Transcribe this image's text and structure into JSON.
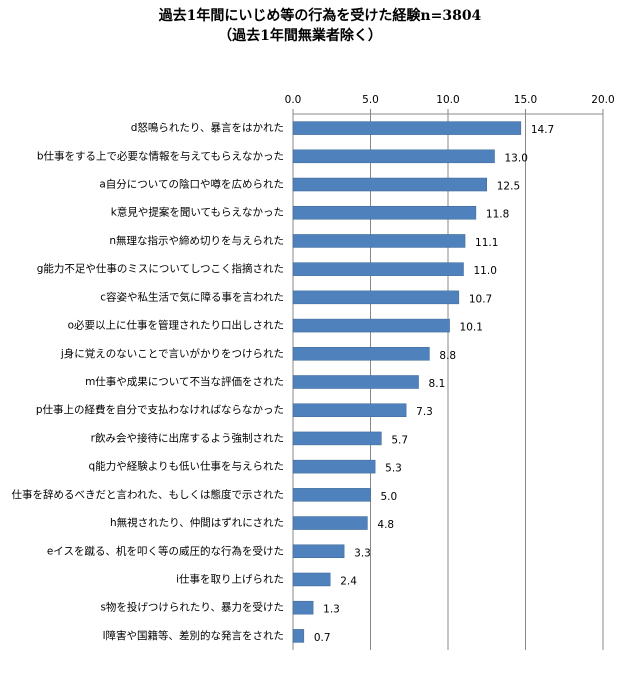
{
  "chart_data": {
    "type": "barh",
    "title": "過去1年間にいじめ等の行為を受けた経験n=3804",
    "subtitle": "（過去1年間無業者除く）",
    "categories": [
      "d怒鳴られたり、暴言をはかれた",
      "b仕事をする上で必要な情報を与えてもらえなかった",
      "a自分についての陰口や噂を広められた",
      "k意見や提案を聞いてもらえなかった",
      "n無理な指示や締め切りを与えられた",
      "g能力不足や仕事のミスについてしつこく指摘された",
      "c容姿や私生活で気に障る事を言われた",
      "o必要以上に仕事を管理されたり口出しされた",
      "j身に覚えのないことで言いがかりをつけられた",
      "m仕事や成果について不当な評価をされた",
      "p仕事上の経費を自分で支払わなければならなかった",
      "r飲み会や接待に出席するよう強制された",
      "q能力や経験よりも低い仕事を与えられた",
      "仕事を辞めるべきだと言われた、もしくは態度で示された",
      "h無視されたり、仲間はずれにされた",
      "eイスを蹴る、机を叩く等の威圧的な行為を受けた",
      "i仕事を取り上げられた",
      "s物を投げつけられたり、暴力を受けた",
      "l障害や国籍等、差別的な発言をされた"
    ],
    "values": [
      14.7,
      13.0,
      12.5,
      11.8,
      11.1,
      11.0,
      10.7,
      10.1,
      8.8,
      8.1,
      7.3,
      5.7,
      5.3,
      5.0,
      4.8,
      3.3,
      2.4,
      1.3,
      0.7
    ],
    "value_labels": [
      "14.7",
      "13.0",
      "12.5",
      "11.8",
      "11.1",
      "11.0",
      "10.7",
      "10.1",
      "8.8",
      "8.1",
      "7.3",
      "5.7",
      "5.3",
      "5.0",
      "4.8",
      "3.3",
      "2.4",
      "1.3",
      "0.7"
    ],
    "color": "#4f81bd",
    "xlim": [
      0,
      20
    ],
    "xticks": [
      {
        "value": 0,
        "label": "0.0"
      },
      {
        "value": 5,
        "label": "5.0"
      },
      {
        "value": 10,
        "label": "10.0"
      },
      {
        "value": 15,
        "label": "15.0"
      },
      {
        "value": 20,
        "label": "20.0"
      }
    ],
    "grid": true
  }
}
